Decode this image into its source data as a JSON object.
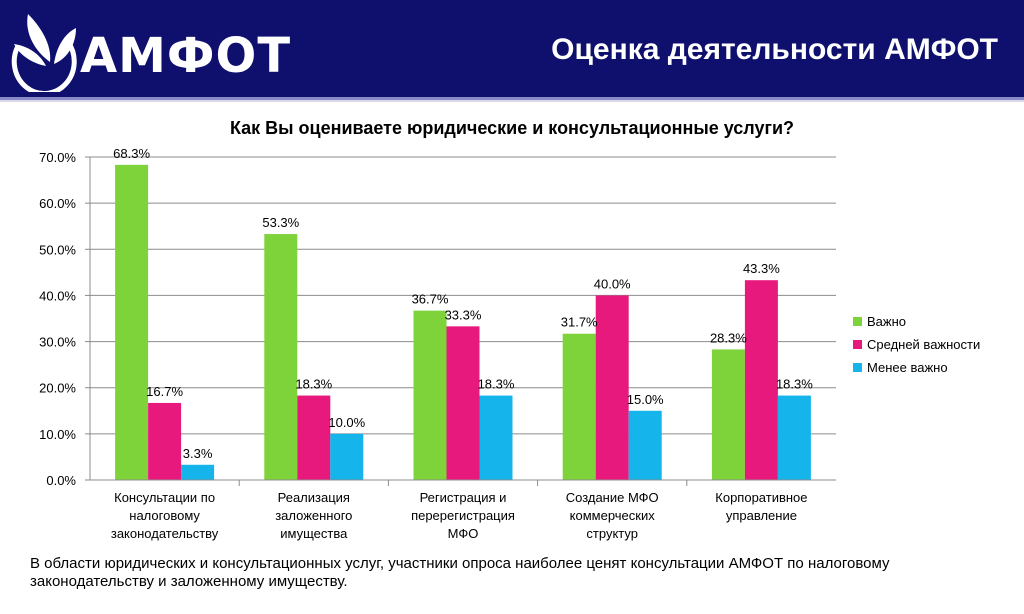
{
  "header": {
    "logo_text": "АМФОТ",
    "title": "Оценка деятельности АМФОТ"
  },
  "colors": {
    "header_bg": "#0f0f6e",
    "series": [
      "#7ed23a",
      "#e8197d",
      "#15b4ea"
    ]
  },
  "chart_data": {
    "type": "bar",
    "title": "Как Вы оцениваете юридические и консультационные услуги?",
    "categories": [
      [
        "Консультации по",
        "налоговому",
        "законодательству"
      ],
      [
        "Реализация",
        "заложенного",
        "имущества"
      ],
      [
        "Регистрация и",
        "перерегистрация",
        "МФО"
      ],
      [
        "Создание МФО",
        "коммерческих",
        "структур"
      ],
      [
        "Корпоративное",
        "управление"
      ]
    ],
    "series": [
      {
        "name": "Важно",
        "values": [
          68.3,
          53.3,
          36.7,
          31.7,
          28.3
        ],
        "labels": [
          "68.3%",
          "53.3%",
          "36.7%",
          "31.7%",
          "28.3%"
        ]
      },
      {
        "name": "Средней важности",
        "values": [
          16.7,
          18.3,
          33.3,
          40.0,
          43.3
        ],
        "labels": [
          "16.7%",
          "18.3%",
          "33.3%",
          "40.0%",
          "43.3%"
        ]
      },
      {
        "name": "Менее важно",
        "values": [
          3.3,
          10.0,
          18.3,
          15.0,
          18.3
        ],
        "labels": [
          "3.3%",
          "10.0%",
          "18.3%",
          "15.0%",
          "18.3%"
        ]
      }
    ],
    "ylim": [
      0,
      70
    ],
    "yticks": [
      "0.0%",
      "10.0%",
      "20.0%",
      "30.0%",
      "40.0%",
      "50.0%",
      "60.0%",
      "70.0%"
    ],
    "grid": true,
    "legend_position": "right"
  },
  "caption": "В области юридических и консультационных услуг, участники опроса наиболее ценят консультации АМФОТ по налоговому законодательству и заложенному имуществу."
}
